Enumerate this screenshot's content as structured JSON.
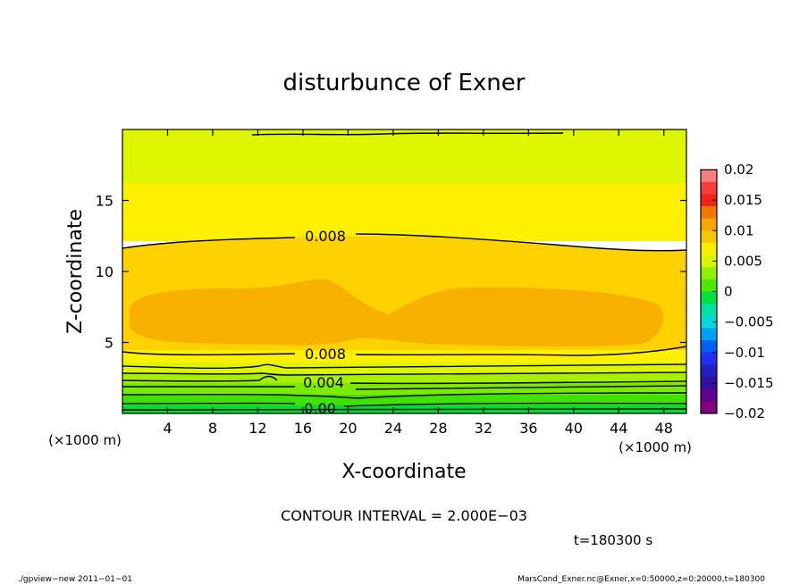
{
  "chart_data": {
    "type": "contour",
    "title": "disturbunce of Exner",
    "xlabel": "X-coordinate",
    "ylabel": "Z-coordinate",
    "x_unit_left": "(×1000 m)",
    "x_unit_right": "(×1000 m)",
    "xlim": [
      0,
      50
    ],
    "ylim": [
      0,
      20
    ],
    "x_ticks": [
      4,
      8,
      12,
      16,
      20,
      24,
      28,
      32,
      36,
      40,
      44,
      48
    ],
    "y_ticks": [
      5,
      10,
      15
    ],
    "contour_labels": [
      {
        "text": "0.008",
        "x": 18,
        "z": 12.3
      },
      {
        "text": "0.008",
        "x": 18,
        "z": 4.1
      },
      {
        "text": "0.004",
        "x": 18,
        "z": 2.0
      },
      {
        "text": "0.00",
        "x": 17.5,
        "z": 0.3
      }
    ],
    "colorbar": {
      "ticks": [
        "0.02",
        "0.015",
        "0.01",
        "0.005",
        "0",
        "−0.005",
        "−0.01",
        "−0.015",
        "−0.02"
      ],
      "range": [
        -0.02,
        0.02
      ],
      "colors": [
        "#f77f7f",
        "#f73c3c",
        "#f0261c",
        "#f07800",
        "#f5a600",
        "#f5c800",
        "#f5f000",
        "#d7f500",
        "#8ff000",
        "#4fe600",
        "#00e040",
        "#00e0a0",
        "#00d8e0",
        "#00a0f0",
        "#0060f0",
        "#2030f0",
        "#2020c0",
        "#3010a0",
        "#600090",
        "#800080"
      ]
    },
    "contour_interval": "CONTOUR INTERVAL = 2.000E−03",
    "time": "t=180300 s"
  },
  "footer": {
    "left": "./gpview−new   2011−01−01",
    "right": "MarsCond_Exner.nc@Exner,x=0:50000,z=0:20000,t=180300"
  }
}
